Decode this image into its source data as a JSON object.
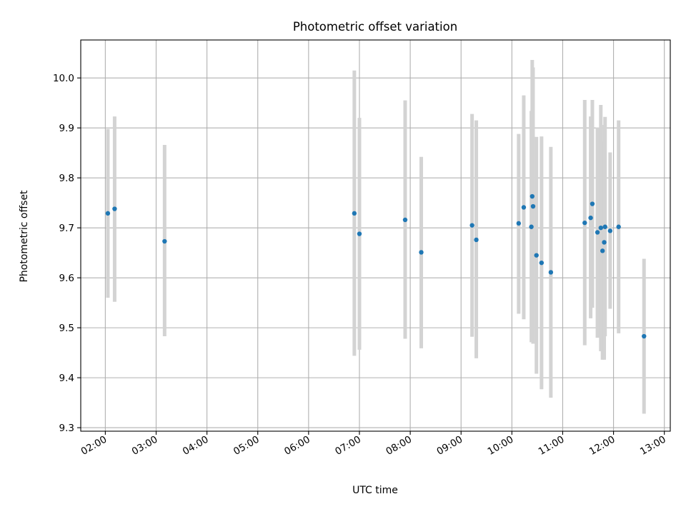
{
  "chart_data": {
    "type": "scatter",
    "title": "Photometric offset variation",
    "xlabel": "UTC time",
    "ylabel": "Photometric offset",
    "x_type": "time",
    "xlim": [
      "01:31",
      "13:07"
    ],
    "ylim": [
      9.293,
      10.076
    ],
    "xticks": [
      "02:00",
      "03:00",
      "04:00",
      "05:00",
      "06:00",
      "07:00",
      "08:00",
      "09:00",
      "10:00",
      "11:00",
      "12:00",
      "13:00"
    ],
    "yticks": [
      9.3,
      9.4,
      9.5,
      9.6,
      9.7,
      9.8,
      9.9,
      10.0
    ],
    "ytick_labels": [
      "9.3",
      "9.4",
      "9.5",
      "9.6",
      "9.7",
      "9.8",
      "9.9",
      "10.0"
    ],
    "grid": true,
    "series": [
      {
        "marker_color": "#1f77b4",
        "errorbar_color": "#d3d3d3",
        "points": [
          {
            "x": "02:03",
            "y": 9.729,
            "ylow": 9.56,
            "yhigh": 9.898
          },
          {
            "x": "02:11",
            "y": 9.738,
            "ylow": 9.552,
            "yhigh": 9.923
          },
          {
            "x": "03:10",
            "y": 9.673,
            "ylow": 9.483,
            "yhigh": 9.866
          },
          {
            "x": "06:54",
            "y": 9.729,
            "ylow": 9.444,
            "yhigh": 10.015
          },
          {
            "x": "07:00",
            "y": 9.688,
            "ylow": 9.456,
            "yhigh": 9.92
          },
          {
            "x": "07:54",
            "y": 9.716,
            "ylow": 9.478,
            "yhigh": 9.955
          },
          {
            "x": "08:13",
            "y": 9.651,
            "ylow": 9.459,
            "yhigh": 9.842
          },
          {
            "x": "09:13",
            "y": 9.705,
            "ylow": 9.482,
            "yhigh": 9.928
          },
          {
            "x": "09:18",
            "y": 9.676,
            "ylow": 9.439,
            "yhigh": 9.915
          },
          {
            "x": "10:08",
            "y": 9.709,
            "ylow": 9.528,
            "yhigh": 9.888
          },
          {
            "x": "10:14",
            "y": 9.741,
            "ylow": 9.517,
            "yhigh": 9.965
          },
          {
            "x": "10:23",
            "y": 9.702,
            "ylow": 9.471,
            "yhigh": 9.934
          },
          {
            "x": "10:24",
            "y": 9.763,
            "ylow": 9.49,
            "yhigh": 10.036
          },
          {
            "x": "10:25",
            "y": 9.743,
            "ylow": 9.468,
            "yhigh": 10.021
          },
          {
            "x": "10:29",
            "y": 9.645,
            "ylow": 9.408,
            "yhigh": 9.882
          },
          {
            "x": "10:35",
            "y": 9.63,
            "ylow": 9.377,
            "yhigh": 9.883
          },
          {
            "x": "10:46",
            "y": 9.611,
            "ylow": 9.36,
            "yhigh": 9.862
          },
          {
            "x": "11:26",
            "y": 9.71,
            "ylow": 9.465,
            "yhigh": 9.956
          },
          {
            "x": "11:33",
            "y": 9.72,
            "ylow": 9.519,
            "yhigh": 9.923
          },
          {
            "x": "11:35",
            "y": 9.748,
            "ylow": 9.54,
            "yhigh": 9.956
          },
          {
            "x": "11:41",
            "y": 9.691,
            "ylow": 9.48,
            "yhigh": 9.901
          },
          {
            "x": "11:45",
            "y": 9.7,
            "ylow": 9.453,
            "yhigh": 9.946
          },
          {
            "x": "11:47",
            "y": 9.654,
            "ylow": 9.436,
            "yhigh": 9.872
          },
          {
            "x": "11:49",
            "y": 9.671,
            "ylow": 9.436,
            "yhigh": 9.906
          },
          {
            "x": "11:50",
            "y": 9.702,
            "ylow": 9.483,
            "yhigh": 9.922
          },
          {
            "x": "11:56",
            "y": 9.694,
            "ylow": 9.538,
            "yhigh": 9.851
          },
          {
            "x": "12:06",
            "y": 9.702,
            "ylow": 9.489,
            "yhigh": 9.915
          },
          {
            "x": "12:36",
            "y": 9.483,
            "ylow": 9.328,
            "yhigh": 9.638
          }
        ]
      }
    ]
  }
}
